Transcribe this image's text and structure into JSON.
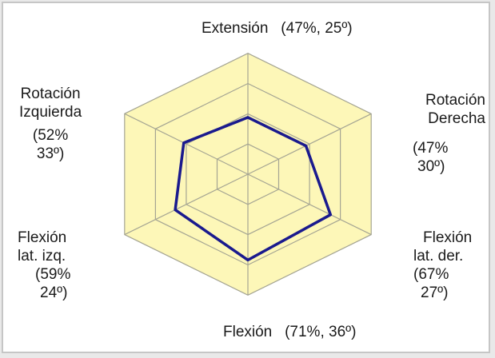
{
  "chart_data": {
    "type": "radar",
    "title": "",
    "axes": [
      {
        "name": "Extensión",
        "percent": "(47%,",
        "degrees": "25º)"
      },
      {
        "name": "Rotación Derecha",
        "line1": "Rotación",
        "line2": "Derecha",
        "percent": "(47%",
        "degrees": "30º)"
      },
      {
        "name": "Flexión lat. der.",
        "line1": "Flexión",
        "line2": "lat. der.",
        "percent": "(67%",
        "degrees": "27º)"
      },
      {
        "name": "Flexión",
        "percent": "(71%,",
        "degrees": "36º)"
      },
      {
        "name": "Flexión lat. izq.",
        "line1": "Flexión",
        "line2": "lat. izq.",
        "percent": "(59%",
        "degrees": "24º)"
      },
      {
        "name": "Rotación Izquierda",
        "line1": "Rotación",
        "line2": "Izquierda",
        "percent": "(52%",
        "degrees": "33º)"
      }
    ],
    "values": [
      47,
      47,
      67,
      71,
      59,
      52
    ],
    "rmax": 100,
    "rings": 4,
    "grid": true,
    "colors": {
      "fill": "#fdf7b8",
      "grid": "#a5a593",
      "series": "#1a1a8e",
      "frame": "#c6c6c6"
    }
  }
}
